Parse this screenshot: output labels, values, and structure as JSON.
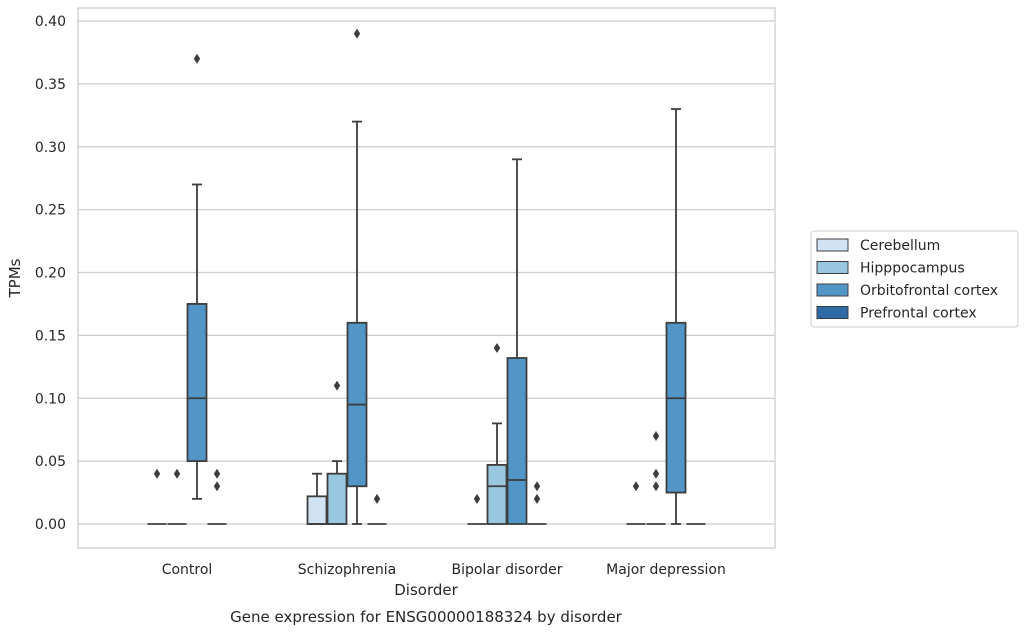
{
  "chart_data": {
    "type": "box",
    "caption": "Gene expression for ENSG00000188324 by disorder",
    "xlabel": "Disorder",
    "ylabel": "TPMs",
    "ylim": [
      -0.019,
      0.41
    ],
    "yticks": [
      0.0,
      0.05,
      0.1,
      0.15,
      0.2,
      0.25,
      0.3,
      0.35,
      0.4
    ],
    "ytick_labels": [
      "0.00",
      "0.05",
      "0.10",
      "0.15",
      "0.20",
      "0.25",
      "0.30",
      "0.35",
      "0.40"
    ],
    "grid": "horizontal",
    "legend_position": "right",
    "categories": [
      "Control",
      "Schizophrenia",
      "Bipolar disorder",
      "Major depression"
    ],
    "series": [
      {
        "name": "Cerebellum",
        "color": "#d1e3f2",
        "boxes": [
          {
            "q1": 0,
            "median": 0,
            "q3": 0,
            "whislo": 0,
            "whishi": 0,
            "fliers": [
              0.04
            ]
          },
          {
            "q1": 0,
            "median": 0,
            "q3": 0.022,
            "whislo": 0,
            "whishi": 0.04,
            "fliers": []
          },
          {
            "q1": 0,
            "median": 0,
            "q3": 0,
            "whislo": 0,
            "whishi": 0,
            "fliers": [
              0.02
            ]
          },
          {
            "q1": 0,
            "median": 0,
            "q3": 0,
            "whislo": 0,
            "whishi": 0,
            "fliers": [
              0.03
            ]
          }
        ]
      },
      {
        "name": "Hipppocampus",
        "color": "#9ac7e0",
        "boxes": [
          {
            "q1": 0,
            "median": 0,
            "q3": 0,
            "whislo": 0,
            "whishi": 0,
            "fliers": [
              0.04
            ]
          },
          {
            "q1": 0,
            "median": 0,
            "q3": 0.04,
            "whislo": 0,
            "whishi": 0.05,
            "fliers": [
              0.11
            ]
          },
          {
            "q1": 0,
            "median": 0.03,
            "q3": 0.047,
            "whislo": 0,
            "whishi": 0.08,
            "fliers": [
              0.14
            ]
          },
          {
            "q1": 0,
            "median": 0,
            "q3": 0,
            "whislo": 0,
            "whishi": 0,
            "fliers": [
              0.03,
              0.04,
              0.07
            ]
          }
        ]
      },
      {
        "name": "Orbitofrontal cortex",
        "color": "#5196c6",
        "boxes": [
          {
            "q1": 0.05,
            "median": 0.1,
            "q3": 0.175,
            "whislo": 0.02,
            "whishi": 0.27,
            "fliers": [
              0.37
            ]
          },
          {
            "q1": 0.03,
            "median": 0.095,
            "q3": 0.16,
            "whislo": 0,
            "whishi": 0.32,
            "fliers": [
              0.39
            ]
          },
          {
            "q1": 0,
            "median": 0.035,
            "q3": 0.132,
            "whislo": 0,
            "whishi": 0.29,
            "fliers": []
          },
          {
            "q1": 0.025,
            "median": 0.1,
            "q3": 0.16,
            "whislo": 0,
            "whishi": 0.33,
            "fliers": []
          }
        ]
      },
      {
        "name": "Prefrontal cortex",
        "color": "#2e6ba5",
        "boxes": [
          {
            "q1": 0,
            "median": 0,
            "q3": 0,
            "whislo": 0,
            "whishi": 0,
            "fliers": [
              0.03,
              0.04
            ]
          },
          {
            "q1": 0,
            "median": 0,
            "q3": 0,
            "whislo": 0,
            "whishi": 0,
            "fliers": [
              0.02
            ]
          },
          {
            "q1": 0,
            "median": 0,
            "q3": 0,
            "whislo": 0,
            "whishi": 0,
            "fliers": [
              0.02,
              0.03
            ]
          },
          {
            "q1": 0,
            "median": 0,
            "q3": 0,
            "whislo": 0,
            "whishi": 0,
            "fliers": []
          }
        ]
      }
    ]
  }
}
